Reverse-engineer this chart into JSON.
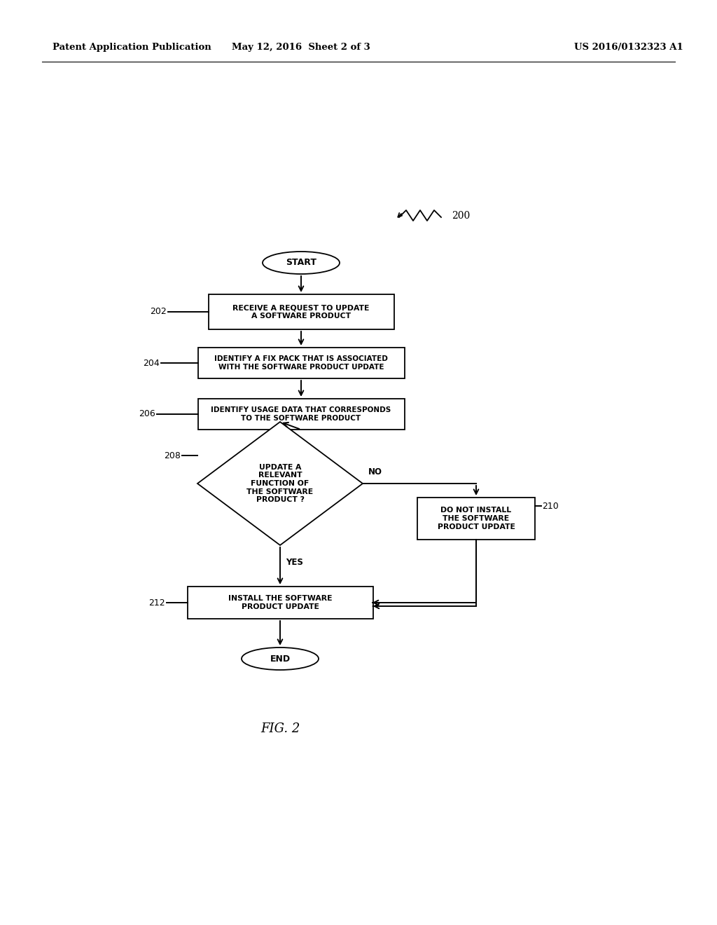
{
  "bg_color": "#ffffff",
  "header_left": "Patent Application Publication",
  "header_center": "May 12, 2016  Sheet 2 of 3",
  "header_right": "US 2016/0132323 A1",
  "fig_label": "FIG. 2",
  "diagram_ref": "200",
  "start_label": "START",
  "end_label": "END",
  "box202_label": "RECEIVE A REQUEST TO UPDATE\nA SOFTWARE PRODUCT",
  "box204_label": "IDENTIFY A FIX PACK THAT IS ASSOCIATED\nWITH THE SOFTWARE PRODUCT UPDATE",
  "box206_label": "IDENTIFY USAGE DATA THAT CORRESPONDS\nTO THE SOFTWARE PRODUCT",
  "diamond208_label": "UPDATE A\nRELEVANT\nFUNCTION OF\nTHE SOFTWARE\nPRODUCT ?",
  "box210_label": "DO NOT INSTALL\nTHE SOFTWARE\nPRODUCT UPDATE",
  "box212_label": "INSTALL THE SOFTWARE\nPRODUCT UPDATE",
  "tag202": "202",
  "tag204": "204",
  "tag206": "206",
  "tag208": "208",
  "tag210": "210",
  "tag212": "212",
  "yes_label": "YES",
  "no_label": "NO",
  "font_size_node": 7.5,
  "font_size_header": 9.5,
  "font_size_fig": 13,
  "font_size_tag": 9,
  "font_size_arrow_label": 8.5
}
